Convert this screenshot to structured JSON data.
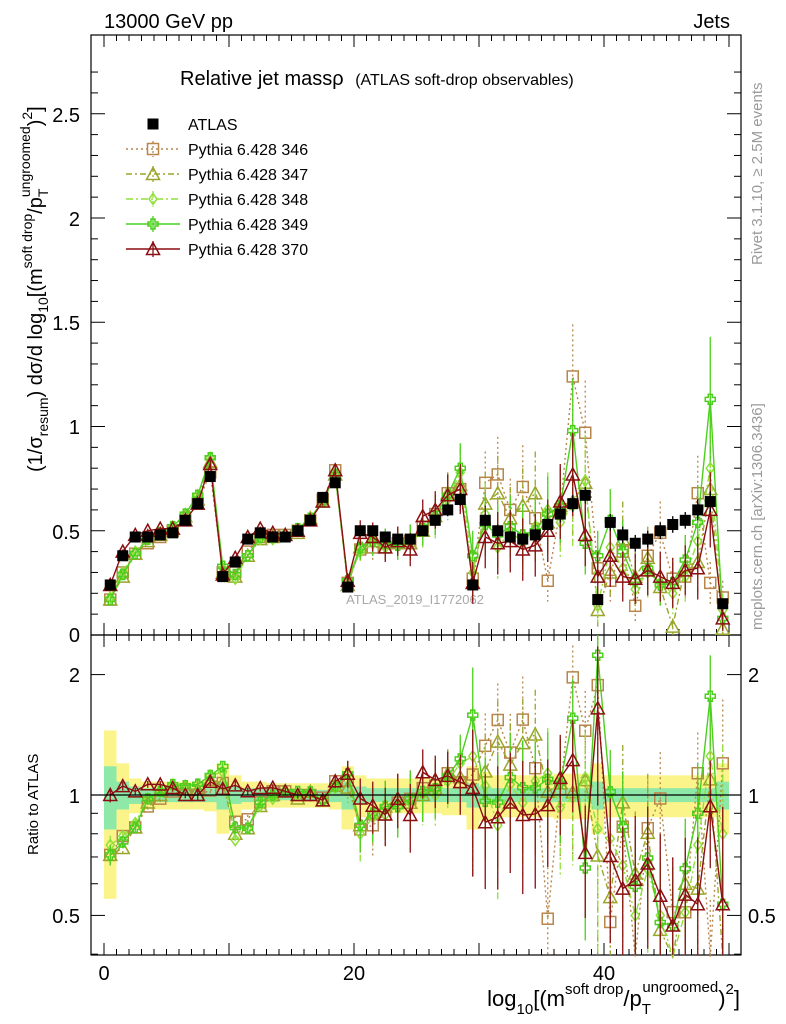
{
  "header": {
    "energy_label": "13000 GeV pp",
    "category_label": "Jets",
    "rivet_label": "Rivet 3.1.10, ≥ 2.5M events",
    "mcplots_label": "mcplots.cern.ch [arXiv:1306.3436]",
    "watermark": "ATLAS_2019_I1772062"
  },
  "title": {
    "main": "Relative jet massρ",
    "sub": "(ATLAS soft-drop observables)"
  },
  "axes": {
    "ylabel_main": "(1/σresum) dσ/d log10[(m^soft drop/pT^ungroomed)^2]",
    "ylabel_main_parts": [
      "(1/σ",
      "resum",
      ") dσ/d log",
      "10",
      "[(m",
      "soft drop",
      "/p",
      "T",
      "ungroomed",
      ")",
      "2",
      "]"
    ],
    "ylabel_ratio": "Ratio to ATLAS",
    "xlabel": "log10[(m^soft drop/pT^ungroomed)^2]",
    "xlabel_parts": [
      "log",
      "10",
      "[(m",
      "soft drop",
      "/p",
      "T",
      "ungroomed",
      ")",
      "2",
      "]"
    ],
    "main_yticks": [
      "0",
      "0.5",
      "1",
      "1.5",
      "2",
      "2.5"
    ],
    "ratio_yticks": [
      "0.5",
      "1",
      "2"
    ],
    "xticks": [
      "0",
      "20",
      "40"
    ]
  },
  "legend": {
    "entries": [
      {
        "label": "ATLAS",
        "color": "#000000",
        "marker": "square-filled",
        "dash": ""
      },
      {
        "label": "Pythia 6.428 346",
        "color": "#b8864b",
        "marker": "square-open",
        "dash": "2,3"
      },
      {
        "label": "Pythia 6.428 347",
        "color": "#9aa52a",
        "marker": "triangle-open",
        "dash": "6,3,2,3"
      },
      {
        "label": "Pythia 6.428 348",
        "color": "#8fe03a",
        "marker": "diamond-open",
        "dash": "7,3,2,3"
      },
      {
        "label": "Pythia 6.428 349",
        "color": "#4ccf1e",
        "marker": "cross-open",
        "dash": ""
      },
      {
        "label": "Pythia 6.428 370",
        "color": "#8b0f12",
        "marker": "triangle-open",
        "dash": ""
      }
    ]
  },
  "chart_data": {
    "type": "line",
    "title": "Relative jet massρ (ATLAS soft-drop observables)",
    "xlim": [
      -1,
      51
    ],
    "ylim": [
      0,
      2.9
    ],
    "ratio_ylim": [
      0.33,
      2.35
    ],
    "ratio_log": true,
    "grid": false,
    "legend_position": "top-left",
    "x": [
      0.5,
      1.5,
      2.5,
      3.5,
      4.5,
      5.5,
      6.5,
      7.5,
      8.5,
      9.5,
      10.5,
      11.5,
      12.5,
      13.5,
      14.5,
      15.5,
      16.5,
      17.5,
      18.5,
      19.5,
      20.5,
      21.5,
      22.5,
      23.5,
      24.5,
      25.5,
      26.5,
      27.5,
      28.5,
      29.5,
      30.5,
      31.5,
      32.5,
      33.5,
      34.5,
      35.5,
      36.5,
      37.5,
      38.5,
      39.5,
      40.5,
      41.5,
      42.5,
      43.5,
      44.5,
      45.5,
      46.5,
      47.5,
      48.5,
      49.5
    ],
    "data": {
      "name": "ATLAS",
      "values": [
        0.24,
        0.38,
        0.47,
        0.47,
        0.48,
        0.49,
        0.55,
        0.63,
        0.76,
        0.28,
        0.35,
        0.46,
        0.49,
        0.47,
        0.47,
        0.5,
        0.55,
        0.66,
        0.73,
        0.23,
        0.5,
        0.5,
        0.47,
        0.46,
        0.46,
        0.5,
        0.55,
        0.6,
        0.65,
        0.24,
        0.55,
        0.5,
        0.47,
        0.46,
        0.48,
        0.53,
        0.58,
        0.63,
        0.67,
        0.17,
        0.54,
        0.48,
        0.44,
        0.46,
        0.5,
        0.53,
        0.55,
        0.6,
        0.64,
        0.15
      ],
      "errors": [
        0.01,
        0.01,
        0.01,
        0.01,
        0.01,
        0.01,
        0.01,
        0.01,
        0.02,
        0.01,
        0.01,
        0.01,
        0.01,
        0.01,
        0.01,
        0.01,
        0.01,
        0.01,
        0.02,
        0.01,
        0.02,
        0.02,
        0.02,
        0.02,
        0.02,
        0.02,
        0.02,
        0.03,
        0.03,
        0.02,
        0.03,
        0.03,
        0.03,
        0.03,
        0.03,
        0.03,
        0.04,
        0.04,
        0.04,
        0.02,
        0.04,
        0.04,
        0.04,
        0.04,
        0.04,
        0.04,
        0.04,
        0.05,
        0.05,
        0.02
      ]
    },
    "ratio_bands": {
      "stat_rel": [
        0.18,
        0.08,
        0.05,
        0.04,
        0.04,
        0.04,
        0.04,
        0.04,
        0.04,
        0.08,
        0.05,
        0.04,
        0.04,
        0.04,
        0.03,
        0.03,
        0.03,
        0.03,
        0.04,
        0.08,
        0.05,
        0.04,
        0.04,
        0.04,
        0.04,
        0.04,
        0.04,
        0.04,
        0.04,
        0.07,
        0.05,
        0.04,
        0.04,
        0.04,
        0.04,
        0.04,
        0.04,
        0.04,
        0.04,
        0.08,
        0.04,
        0.04,
        0.04,
        0.04,
        0.04,
        0.04,
        0.04,
        0.04,
        0.04,
        0.08
      ],
      "total_rel": [
        0.45,
        0.2,
        0.1,
        0.08,
        0.08,
        0.08,
        0.08,
        0.08,
        0.09,
        0.2,
        0.12,
        0.08,
        0.08,
        0.07,
        0.07,
        0.07,
        0.07,
        0.07,
        0.08,
        0.18,
        0.12,
        0.1,
        0.1,
        0.1,
        0.1,
        0.1,
        0.1,
        0.11,
        0.11,
        0.18,
        0.14,
        0.12,
        0.12,
        0.12,
        0.12,
        0.12,
        0.13,
        0.13,
        0.13,
        0.2,
        0.12,
        0.12,
        0.12,
        0.12,
        0.12,
        0.12,
        0.12,
        0.12,
        0.12,
        0.2
      ],
      "stat_color": "#8ee8a8",
      "total_color": "#fbf48a"
    },
    "series": [
      {
        "name": "Pythia 6.428 346",
        "color": "#b8864b",
        "dash": "2,3",
        "marker": "square-open",
        "values": [
          0.17,
          0.3,
          0.39,
          0.44,
          0.47,
          0.5,
          0.55,
          0.63,
          0.78,
          0.3,
          0.3,
          0.4,
          0.47,
          0.48,
          0.48,
          0.5,
          0.55,
          0.65,
          0.79,
          0.25,
          0.41,
          0.42,
          0.42,
          0.44,
          0.45,
          0.52,
          0.58,
          0.68,
          0.7,
          0.27,
          0.73,
          0.77,
          0.6,
          0.71,
          0.56,
          0.26,
          0.6,
          1.24,
          0.97,
          0.32,
          0.26,
          0.4,
          0.14,
          0.38,
          0.49,
          0.27,
          0.28,
          0.68,
          0.25,
          0.18
        ],
        "errors": [
          0.01,
          0.01,
          0.01,
          0.01,
          0.01,
          0.01,
          0.01,
          0.02,
          0.02,
          0.01,
          0.01,
          0.01,
          0.01,
          0.01,
          0.01,
          0.01,
          0.02,
          0.02,
          0.03,
          0.02,
          0.06,
          0.07,
          0.07,
          0.07,
          0.08,
          0.08,
          0.09,
          0.1,
          0.12,
          0.1,
          0.15,
          0.18,
          0.15,
          0.2,
          0.15,
          0.1,
          0.2,
          0.25,
          0.25,
          0.1,
          0.1,
          0.15,
          0.08,
          0.12,
          0.15,
          0.1,
          0.1,
          0.18,
          0.1,
          0.08
        ]
      },
      {
        "name": "Pythia 6.428 347",
        "color": "#9aa52a",
        "dash": "6,3,2,3",
        "marker": "triangle-open",
        "values": [
          0.17,
          0.28,
          0.39,
          0.45,
          0.48,
          0.51,
          0.57,
          0.65,
          0.83,
          0.3,
          0.28,
          0.38,
          0.46,
          0.47,
          0.48,
          0.49,
          0.56,
          0.64,
          0.77,
          0.24,
          0.42,
          0.45,
          0.44,
          0.45,
          0.44,
          0.5,
          0.57,
          0.68,
          0.72,
          0.25,
          0.63,
          0.68,
          0.56,
          0.62,
          0.68,
          0.54,
          0.62,
          0.64,
          0.73,
          0.12,
          0.3,
          0.46,
          0.28,
          0.37,
          0.23,
          0.04,
          0.33,
          0.35,
          0.7,
          0.03
        ],
        "errors": [
          0.01,
          0.01,
          0.01,
          0.01,
          0.01,
          0.01,
          0.01,
          0.02,
          0.02,
          0.01,
          0.01,
          0.01,
          0.01,
          0.01,
          0.01,
          0.01,
          0.02,
          0.02,
          0.03,
          0.02,
          0.06,
          0.07,
          0.07,
          0.07,
          0.08,
          0.08,
          0.09,
          0.1,
          0.12,
          0.1,
          0.15,
          0.18,
          0.15,
          0.18,
          0.2,
          0.15,
          0.18,
          0.2,
          0.22,
          0.08,
          0.12,
          0.18,
          0.12,
          0.15,
          0.1,
          0.04,
          0.12,
          0.15,
          0.2,
          0.03
        ]
      },
      {
        "name": "Pythia 6.428 348",
        "color": "#8fe03a",
        "dash": "7,3,2,3",
        "marker": "diamond-open",
        "values": [
          0.18,
          0.3,
          0.4,
          0.46,
          0.49,
          0.52,
          0.58,
          0.67,
          0.85,
          0.32,
          0.27,
          0.38,
          0.46,
          0.46,
          0.48,
          0.5,
          0.56,
          0.64,
          0.76,
          0.26,
          0.4,
          0.44,
          0.42,
          0.43,
          0.44,
          0.5,
          0.55,
          0.65,
          0.78,
          0.3,
          0.58,
          0.42,
          0.5,
          0.44,
          0.52,
          0.6,
          0.54,
          0.62,
          0.74,
          0.14,
          0.42,
          0.32,
          0.22,
          0.3,
          0.25,
          0.2,
          0.28,
          0.45,
          0.8,
          0.12
        ],
        "errors": [
          0.01,
          0.01,
          0.01,
          0.01,
          0.01,
          0.01,
          0.01,
          0.02,
          0.02,
          0.01,
          0.01,
          0.01,
          0.01,
          0.01,
          0.01,
          0.01,
          0.02,
          0.02,
          0.03,
          0.02,
          0.06,
          0.07,
          0.07,
          0.07,
          0.08,
          0.08,
          0.09,
          0.1,
          0.12,
          0.1,
          0.15,
          0.15,
          0.15,
          0.15,
          0.18,
          0.18,
          0.18,
          0.2,
          0.22,
          0.08,
          0.15,
          0.12,
          0.1,
          0.12,
          0.1,
          0.1,
          0.12,
          0.15,
          0.25,
          0.08
        ]
      },
      {
        "name": "Pythia 6.428 349",
        "color": "#4ccf1e",
        "dash": "",
        "marker": "cross-open",
        "values": [
          0.17,
          0.29,
          0.39,
          0.46,
          0.49,
          0.52,
          0.58,
          0.67,
          0.85,
          0.33,
          0.29,
          0.38,
          0.47,
          0.47,
          0.48,
          0.51,
          0.56,
          0.64,
          0.77,
          0.26,
          0.42,
          0.45,
          0.44,
          0.43,
          0.45,
          0.51,
          0.57,
          0.67,
          0.8,
          0.38,
          0.53,
          0.48,
          0.52,
          0.48,
          0.5,
          0.58,
          0.62,
          0.98,
          0.44,
          0.38,
          0.55,
          0.4,
          0.26,
          0.32,
          0.24,
          0.25,
          0.36,
          0.54,
          1.13,
          0.08
        ],
        "errors": [
          0.01,
          0.01,
          0.01,
          0.01,
          0.01,
          0.01,
          0.01,
          0.02,
          0.02,
          0.01,
          0.01,
          0.01,
          0.01,
          0.01,
          0.01,
          0.01,
          0.02,
          0.02,
          0.03,
          0.02,
          0.06,
          0.07,
          0.07,
          0.07,
          0.08,
          0.08,
          0.09,
          0.1,
          0.12,
          0.12,
          0.15,
          0.15,
          0.15,
          0.15,
          0.15,
          0.18,
          0.18,
          0.25,
          0.15,
          0.12,
          0.15,
          0.15,
          0.1,
          0.12,
          0.1,
          0.1,
          0.12,
          0.18,
          0.3,
          0.06
        ]
      },
      {
        "name": "Pythia 6.428 370",
        "color": "#8b0f12",
        "dash": "",
        "marker": "triangle-open",
        "values": [
          0.24,
          0.4,
          0.48,
          0.5,
          0.51,
          0.51,
          0.55,
          0.63,
          0.82,
          0.29,
          0.37,
          0.47,
          0.51,
          0.49,
          0.48,
          0.5,
          0.55,
          0.64,
          0.79,
          0.26,
          0.49,
          0.47,
          0.42,
          0.45,
          0.41,
          0.57,
          0.6,
          0.67,
          0.7,
          0.25,
          0.47,
          0.44,
          0.45,
          0.41,
          0.43,
          0.5,
          0.64,
          0.77,
          0.48,
          0.28,
          0.38,
          0.28,
          0.27,
          0.31,
          0.28,
          0.25,
          0.31,
          0.32,
          0.6,
          0.08
        ],
        "errors": [
          0.01,
          0.01,
          0.01,
          0.01,
          0.01,
          0.01,
          0.01,
          0.02,
          0.02,
          0.01,
          0.01,
          0.01,
          0.01,
          0.01,
          0.01,
          0.01,
          0.02,
          0.02,
          0.03,
          0.02,
          0.06,
          0.07,
          0.07,
          0.07,
          0.08,
          0.08,
          0.09,
          0.1,
          0.12,
          0.1,
          0.15,
          0.15,
          0.15,
          0.15,
          0.15,
          0.15,
          0.18,
          0.2,
          0.15,
          0.12,
          0.15,
          0.12,
          0.12,
          0.12,
          0.12,
          0.12,
          0.12,
          0.15,
          0.18,
          0.06
        ]
      }
    ]
  }
}
